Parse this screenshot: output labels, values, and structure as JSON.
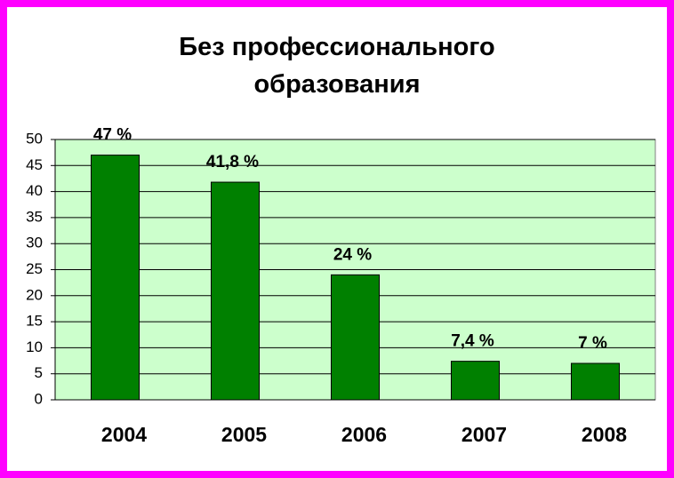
{
  "chart_data": {
    "type": "bar",
    "title": "Без профессионального образования",
    "categories": [
      "2004",
      "2005",
      "2006",
      "2007",
      "2008"
    ],
    "values": [
      47,
      41.8,
      24,
      7.4,
      7
    ],
    "value_labels": [
      "47 %",
      "41,8 %",
      "24 %",
      "7,4 %",
      "7 %"
    ],
    "color": "#008000",
    "ylim": [
      0,
      50
    ],
    "yticks": [
      0,
      5,
      10,
      15,
      20,
      25,
      30,
      35,
      40,
      45,
      50
    ],
    "grid": true
  }
}
